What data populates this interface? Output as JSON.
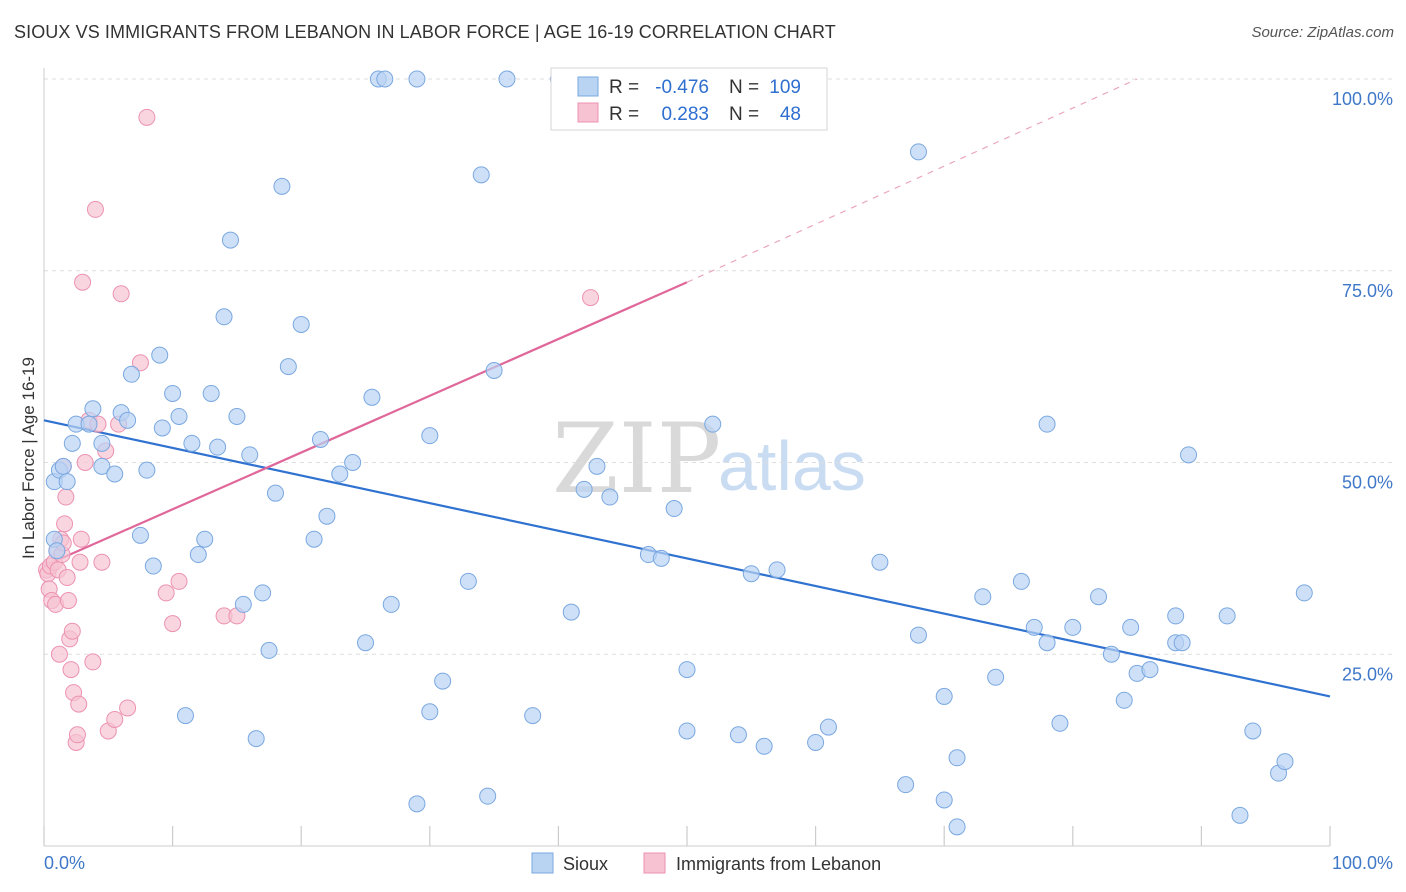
{
  "header": {
    "title": "SIOUX VS IMMIGRANTS FROM LEBANON IN LABOR FORCE | AGE 16-19 CORRELATION CHART",
    "source": "Source: ZipAtlas.com"
  },
  "watermark": {
    "zip": "ZIP",
    "atlas": "atlas"
  },
  "colors": {
    "sioux_fill": "#b9d3f3",
    "sioux_stroke": "#7aa8e0",
    "sioux_line": "#2f72d0",
    "lebanon_fill": "#f7c3d3",
    "lebanon_stroke": "#ec92b1",
    "lebanon_line": "#e0679a",
    "tick": "#3f78c8",
    "grid": "#dddddd"
  },
  "legend": {
    "rows": [
      {
        "r_label": "R =",
        "r_value": "-0.476",
        "n_label": "N =",
        "n_value": "109"
      },
      {
        "r_label": "R =",
        "r_value": "0.283",
        "n_label": "N =",
        "n_value": "48"
      }
    ]
  },
  "chart_data": {
    "type": "scatter",
    "title": "SIOUX VS IMMIGRANTS FROM LEBANON IN LABOR FORCE | AGE 16-19 CORRELATION CHART",
    "xlabel": "",
    "ylabel": "In Labor Force | Age 16-19",
    "xlim": [
      0,
      100
    ],
    "ylim": [
      0,
      100
    ],
    "x_tick_labels": [
      "0.0%",
      "100.0%"
    ],
    "y_ticks": [
      {
        "value": 100,
        "label": "100.0%"
      },
      {
        "value": 75,
        "label": "75.0%"
      },
      {
        "value": 50,
        "label": "50.0%"
      },
      {
        "value": 25,
        "label": "25.0%"
      }
    ],
    "legend_position": "top-center",
    "series": [
      {
        "name": "Sioux",
        "r": -0.476,
        "n": 109,
        "trend": {
          "x": [
            0,
            100
          ],
          "y": [
            55.5,
            19.5
          ],
          "dashed_extension": false
        },
        "points": [
          [
            0.8,
            40
          ],
          [
            0.8,
            47.5
          ],
          [
            1.0,
            38.5
          ],
          [
            1.2,
            49
          ],
          [
            1.5,
            49.5
          ],
          [
            1.8,
            47.5
          ],
          [
            2.2,
            52.5
          ],
          [
            2.5,
            55
          ],
          [
            3.5,
            55
          ],
          [
            3.8,
            57
          ],
          [
            4.5,
            52.5
          ],
          [
            4.5,
            49.5
          ],
          [
            5.5,
            48.5
          ],
          [
            6.0,
            56.5
          ],
          [
            6.5,
            55.5
          ],
          [
            6.8,
            61.5
          ],
          [
            7.5,
            40.5
          ],
          [
            8.0,
            49
          ],
          [
            8.5,
            36.5
          ],
          [
            9.0,
            64
          ],
          [
            9.2,
            54.5
          ],
          [
            10,
            59
          ],
          [
            10.5,
            56
          ],
          [
            11,
            17
          ],
          [
            11.5,
            52.5
          ],
          [
            12,
            38
          ],
          [
            12.5,
            40
          ],
          [
            13,
            59
          ],
          [
            13.5,
            52
          ],
          [
            14,
            69
          ],
          [
            14.5,
            79
          ],
          [
            15,
            56
          ],
          [
            15.5,
            31.5
          ],
          [
            16,
            51
          ],
          [
            16.5,
            14
          ],
          [
            17,
            33
          ],
          [
            17.5,
            25.5
          ],
          [
            18,
            46
          ],
          [
            18.5,
            86
          ],
          [
            19,
            62.5
          ],
          [
            20,
            68
          ],
          [
            21,
            40
          ],
          [
            21.5,
            53
          ],
          [
            22,
            43
          ],
          [
            23,
            48.5
          ],
          [
            24,
            50
          ],
          [
            25,
            26.5
          ],
          [
            25.5,
            58.5
          ],
          [
            26,
            100
          ],
          [
            26.5,
            100
          ],
          [
            27,
            31.5
          ],
          [
            29,
            100
          ],
          [
            29,
            5.5
          ],
          [
            30,
            53.5
          ],
          [
            30,
            17.5
          ],
          [
            31,
            21.5
          ],
          [
            33,
            34.5
          ],
          [
            34,
            87.5
          ],
          [
            34.5,
            6.5
          ],
          [
            35,
            62
          ],
          [
            36,
            100
          ],
          [
            38,
            17
          ],
          [
            40,
            100
          ],
          [
            41,
            30.5
          ],
          [
            42,
            46.5
          ],
          [
            43,
            49.5
          ],
          [
            44,
            45.5
          ],
          [
            47,
            38
          ],
          [
            48,
            37.5
          ],
          [
            49,
            44
          ],
          [
            50,
            23
          ],
          [
            50,
            15
          ],
          [
            52,
            55
          ],
          [
            54,
            14.5
          ],
          [
            55,
            35.5
          ],
          [
            56,
            13
          ],
          [
            57,
            36
          ],
          [
            60,
            13.5
          ],
          [
            61,
            15.5
          ],
          [
            65,
            37
          ],
          [
            67,
            8
          ],
          [
            68,
            90.5
          ],
          [
            68,
            27.5
          ],
          [
            70,
            6
          ],
          [
            70,
            19.5
          ],
          [
            71,
            2.5
          ],
          [
            71,
            11.5
          ],
          [
            73,
            32.5
          ],
          [
            74,
            22
          ],
          [
            76,
            34.5
          ],
          [
            77,
            28.5
          ],
          [
            78,
            55
          ],
          [
            78,
            26.5
          ],
          [
            79,
            16
          ],
          [
            80,
            28.5
          ],
          [
            82,
            32.5
          ],
          [
            83,
            25
          ],
          [
            84,
            19
          ],
          [
            84.5,
            28.5
          ],
          [
            85,
            22.5
          ],
          [
            86,
            23
          ],
          [
            88,
            26.5
          ],
          [
            88,
            30
          ],
          [
            88.5,
            26.5
          ],
          [
            89,
            51
          ],
          [
            92,
            30
          ],
          [
            93,
            4
          ],
          [
            94,
            15
          ],
          [
            96,
            9.5
          ],
          [
            96.5,
            11
          ],
          [
            98,
            33
          ]
        ]
      },
      {
        "name": "Immigrants from Lebanon",
        "r": 0.283,
        "n": 48,
        "trend": {
          "x": [
            0,
            50
          ],
          "y": [
            36.5,
            73.5
          ],
          "extension_to": [
            85,
            100
          ],
          "dashed_extension": true
        },
        "points": [
          [
            0.2,
            36
          ],
          [
            0.3,
            35.5
          ],
          [
            0.4,
            33.5
          ],
          [
            0.5,
            36.5
          ],
          [
            0.6,
            32
          ],
          [
            0.8,
            37
          ],
          [
            0.9,
            31.5
          ],
          [
            1.0,
            38.5
          ],
          [
            1.1,
            36
          ],
          [
            1.2,
            25
          ],
          [
            1.3,
            40
          ],
          [
            1.4,
            38
          ],
          [
            1.5,
            39.5
          ],
          [
            1.6,
            42
          ],
          [
            1.7,
            45.5
          ],
          [
            1.8,
            35
          ],
          [
            1.9,
            32
          ],
          [
            2.0,
            27
          ],
          [
            2.1,
            23
          ],
          [
            2.2,
            28
          ],
          [
            2.3,
            20
          ],
          [
            2.5,
            13.5
          ],
          [
            2.6,
            14.5
          ],
          [
            2.7,
            18.5
          ],
          [
            2.8,
            37
          ],
          [
            2.9,
            40
          ],
          [
            3.0,
            73.5
          ],
          [
            3.2,
            50
          ],
          [
            3.5,
            55.5
          ],
          [
            3.8,
            24
          ],
          [
            4.0,
            83
          ],
          [
            4.2,
            55
          ],
          [
            4.5,
            37
          ],
          [
            4.8,
            51.5
          ],
          [
            5.0,
            15
          ],
          [
            5.5,
            16.5
          ],
          [
            5.8,
            55
          ],
          [
            6.0,
            72
          ],
          [
            6.5,
            18
          ],
          [
            7.5,
            63
          ],
          [
            8,
            95
          ],
          [
            9.5,
            33
          ],
          [
            10,
            29
          ],
          [
            10.5,
            34.5
          ],
          [
            14,
            30
          ],
          [
            15,
            30
          ],
          [
            42.5,
            71.5
          ],
          [
            1.5,
            49.5
          ]
        ]
      }
    ]
  },
  "bottom_legend": {
    "items": [
      "Sioux",
      "Immigrants from Lebanon"
    ]
  }
}
